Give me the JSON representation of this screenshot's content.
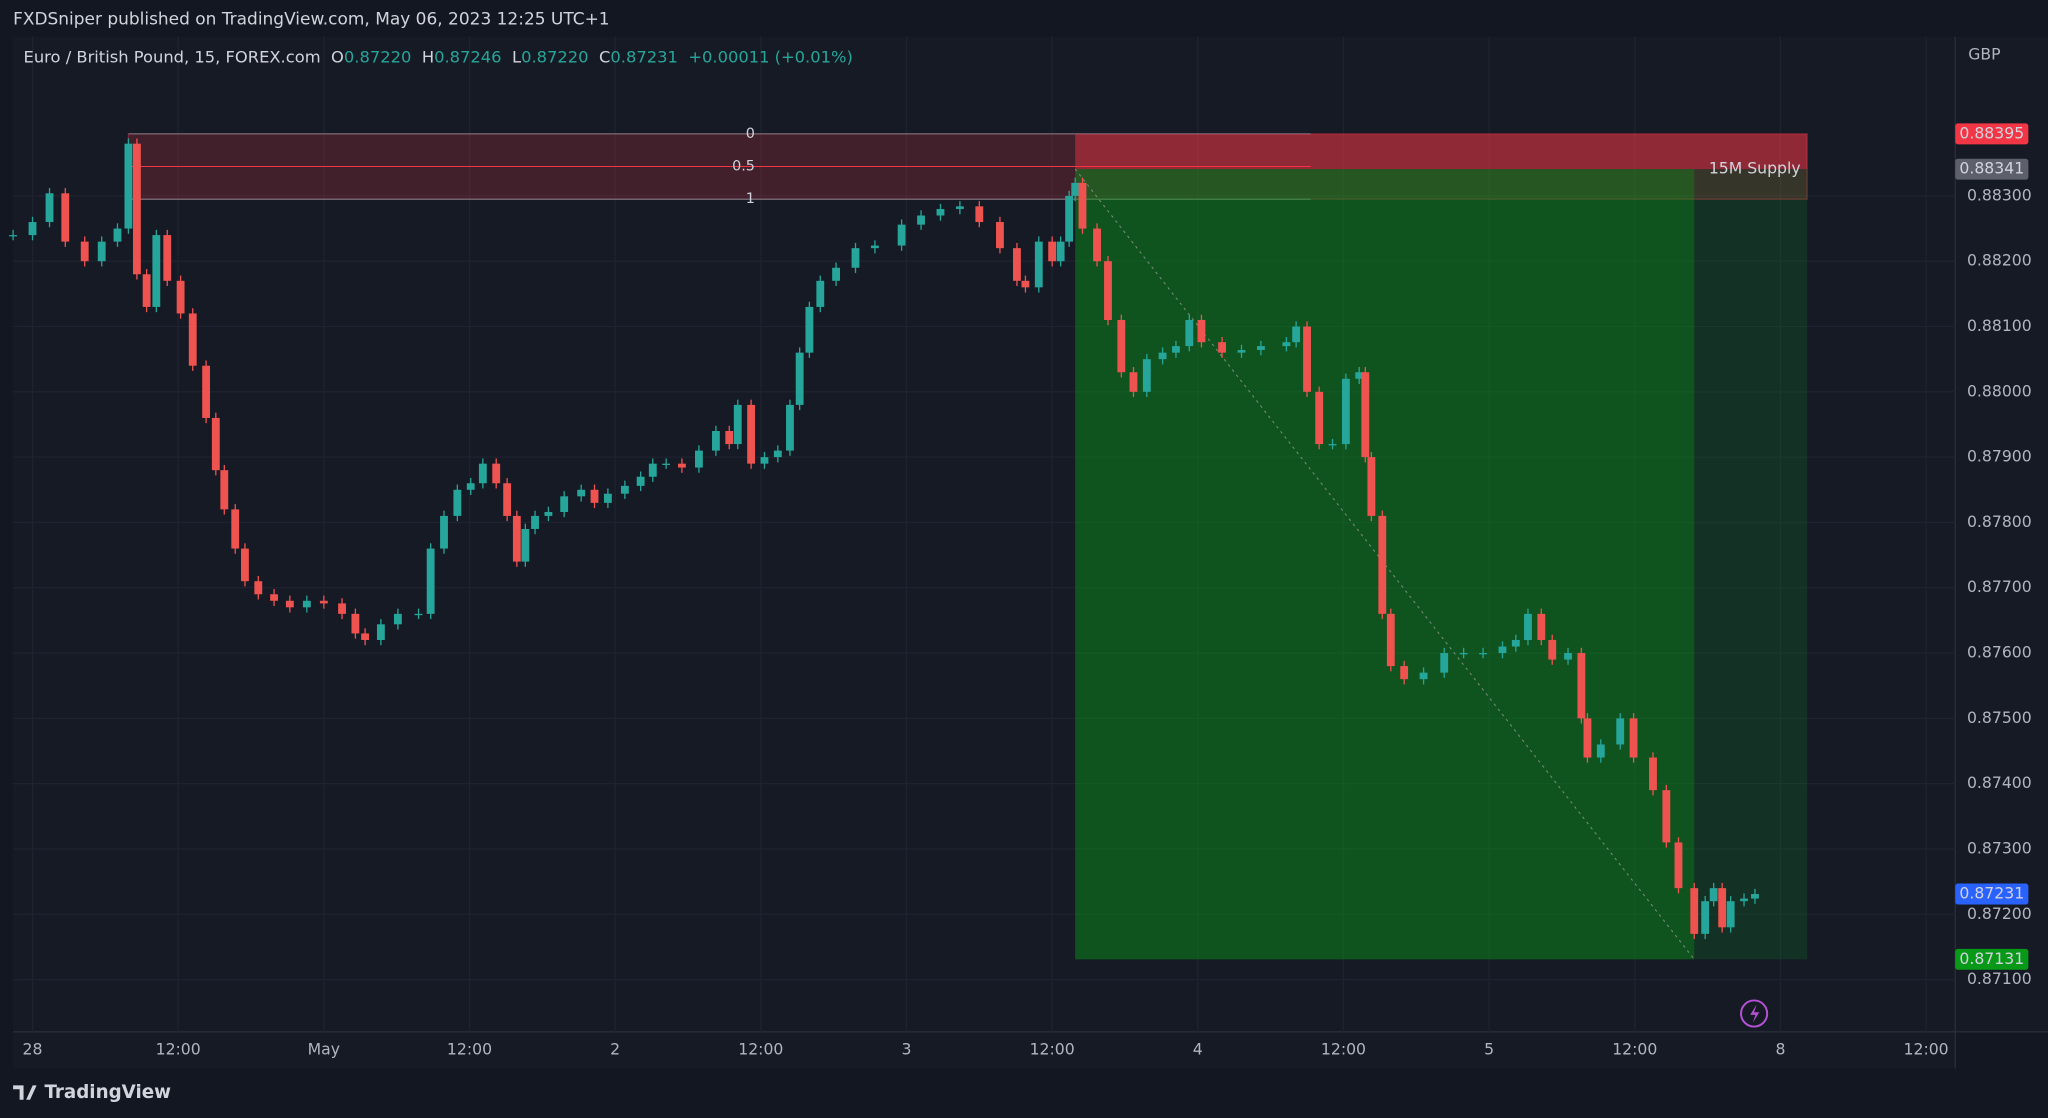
{
  "header": {
    "published": "FXDSniper published on TradingView.com, May 06, 2023 12:25 UTC+1"
  },
  "legend": {
    "symbol": "Euro / British Pound, 15, FOREX.com",
    "fields": [
      {
        "key": "O",
        "value": "0.87220"
      },
      {
        "key": "H",
        "value": "0.87246"
      },
      {
        "key": "L",
        "value": "0.87220"
      },
      {
        "key": "C",
        "value": "0.87231"
      }
    ],
    "change": "+0.00011 (+0.01%)"
  },
  "footer": {
    "brand": "TradingView"
  },
  "chart_data": {
    "type": "candlestick",
    "currency": "GBP",
    "colors": {
      "up": "#26a69a",
      "down": "#ef5350"
    },
    "x": [
      -1.6,
      0,
      1.4,
      2.7,
      4.3,
      5.7,
      7.0,
      7.9,
      8.6,
      9.4,
      10.2,
      11.1,
      12.2,
      13.2,
      14.3,
      15.1,
      15.8,
      16.7,
      17.5,
      18.6,
      19.9,
      21.2,
      22.6,
      24.0,
      25.5,
      26.6,
      27.4,
      28.7,
      30.1,
      31.8,
      32.8,
      33.9,
      35.0,
      36.1,
      37.1,
      38.2,
      39.1,
      39.9,
      40.6,
      41.4,
      42.5,
      43.8,
      45.2,
      46.3,
      47.4,
      48.8,
      50.1,
      51.1,
      52.2,
      53.5,
      54.9,
      56.3,
      57.4,
      58.1,
      59.2,
      60.3,
      61.4,
      62.4,
      63.2,
      64.0,
      64.9,
      66.2,
      67.8,
      69.4,
      71.6,
      73.2,
      74.8,
      76.4,
      78.0,
      79.7,
      81.1,
      81.8,
      82.9,
      84.0,
      84.7,
      85.4,
      85.9,
      86.5,
      87.7,
      88.6,
      89.7,
      90.7,
      91.8,
      93.1,
      94.2,
      95.3,
      96.3,
      98.0,
      99.6,
      101.2,
      103.3,
      104.1,
      105.0,
      106.0,
      107.1,
      108.2,
      109.3,
      109.8,
      110.3,
      111.2,
      111.9,
      113.0,
      114.6,
      116.3,
      117.9,
      119.5,
      121.1,
      122.2,
      123.2,
      124.3,
      125.2,
      126.5,
      127.6,
      128.1,
      129.2,
      130.8,
      131.9,
      133.5,
      134.6,
      135.6,
      136.9,
      137.8,
      138.5,
      139.2,
      139.9,
      141.0,
      141.9
    ],
    "values": [
      0.8824,
      0.8826,
      0.88304,
      0.8823,
      0.882,
      0.8823,
      0.8825,
      0.8838,
      0.8818,
      0.8813,
      0.8824,
      0.8817,
      0.8812,
      0.8804,
      0.8796,
      0.8788,
      0.8782,
      0.8776,
      0.8771,
      0.8769,
      0.8768,
      0.8767,
      0.8768,
      0.87676,
      0.8766,
      0.8763,
      0.8762,
      0.87644,
      0.8766,
      0.8766,
      0.8776,
      0.8781,
      0.8785,
      0.8786,
      0.8789,
      0.8786,
      0.8781,
      0.8774,
      0.8779,
      0.8781,
      0.87816,
      0.8784,
      0.8785,
      0.8783,
      0.87844,
      0.87856,
      0.8787,
      0.8789,
      0.8789,
      0.87884,
      0.8791,
      0.8794,
      0.8792,
      0.8798,
      0.8789,
      0.879,
      0.8791,
      0.8798,
      0.8806,
      0.8813,
      0.8817,
      0.8819,
      0.8822,
      0.88224,
      0.88256,
      0.8827,
      0.8828,
      0.88284,
      0.8826,
      0.8822,
      0.8817,
      0.8816,
      0.8823,
      0.882,
      0.8823,
      0.883,
      0.8832,
      0.8825,
      0.882,
      0.8811,
      0.8803,
      0.88,
      0.8805,
      0.8806,
      0.8807,
      0.8811,
      0.88076,
      0.8806,
      0.88064,
      0.8807,
      0.88076,
      0.881,
      0.88,
      0.8792,
      0.8792,
      0.8802,
      0.8803,
      0.879,
      0.8781,
      0.8766,
      0.8758,
      0.8756,
      0.8757,
      0.876,
      0.876,
      0.876,
      0.8761,
      0.8762,
      0.8766,
      0.8762,
      0.8759,
      0.876,
      0.875,
      0.8744,
      0.8746,
      0.875,
      0.8744,
      0.8739,
      0.8731,
      0.8724,
      0.8717,
      0.8722,
      0.8724,
      0.8718,
      0.8722,
      0.87224,
      0.87231
    ],
    "xlim": [
      -1.6,
      158.4
    ],
    "ylim": [
      0.8702,
      0.88544
    ],
    "xticks": [
      {
        "value": 0,
        "label": "28"
      },
      {
        "value": 12,
        "label": "12:00"
      },
      {
        "value": 24,
        "label": "May"
      },
      {
        "value": 36,
        "label": "12:00"
      },
      {
        "value": 48,
        "label": "2"
      },
      {
        "value": 60,
        "label": "12:00"
      },
      {
        "value": 72,
        "label": "3"
      },
      {
        "value": 84,
        "label": "12:00"
      },
      {
        "value": 96,
        "label": "4"
      },
      {
        "value": 108,
        "label": "12:00"
      },
      {
        "value": 120,
        "label": "5"
      },
      {
        "value": 132,
        "label": "12:00"
      },
      {
        "value": 144,
        "label": "8"
      },
      {
        "value": 156,
        "label": "12:00"
      }
    ],
    "yticks": [
      {
        "value": 0.871,
        "label": "0.87100"
      },
      {
        "value": 0.872,
        "label": "0.87200"
      },
      {
        "value": 0.873,
        "label": "0.87300"
      },
      {
        "value": 0.874,
        "label": "0.87400"
      },
      {
        "value": 0.875,
        "label": "0.87500"
      },
      {
        "value": 0.876,
        "label": "0.87600"
      },
      {
        "value": 0.877,
        "label": "0.87700"
      },
      {
        "value": 0.878,
        "label": "0.87800"
      },
      {
        "value": 0.879,
        "label": "0.87900"
      },
      {
        "value": 0.88,
        "label": "0.88000"
      },
      {
        "value": 0.881,
        "label": "0.88100"
      },
      {
        "value": 0.882,
        "label": "0.88200"
      },
      {
        "value": 0.883,
        "label": "0.88300"
      }
    ],
    "grid": true,
    "zone": {
      "label": "15M Supply",
      "top": 0.88395,
      "bottom": 0.88295,
      "x0": 7.9,
      "x1": 146.2,
      "fib_end": 105.3,
      "levels": [
        0,
        0.5,
        1
      ]
    },
    "position": {
      "entry": 0.88341,
      "stop": 0.88395,
      "target": 0.87131,
      "x0": 85.9,
      "x1": 146.2,
      "x_exit": 136.9
    }
  }
}
